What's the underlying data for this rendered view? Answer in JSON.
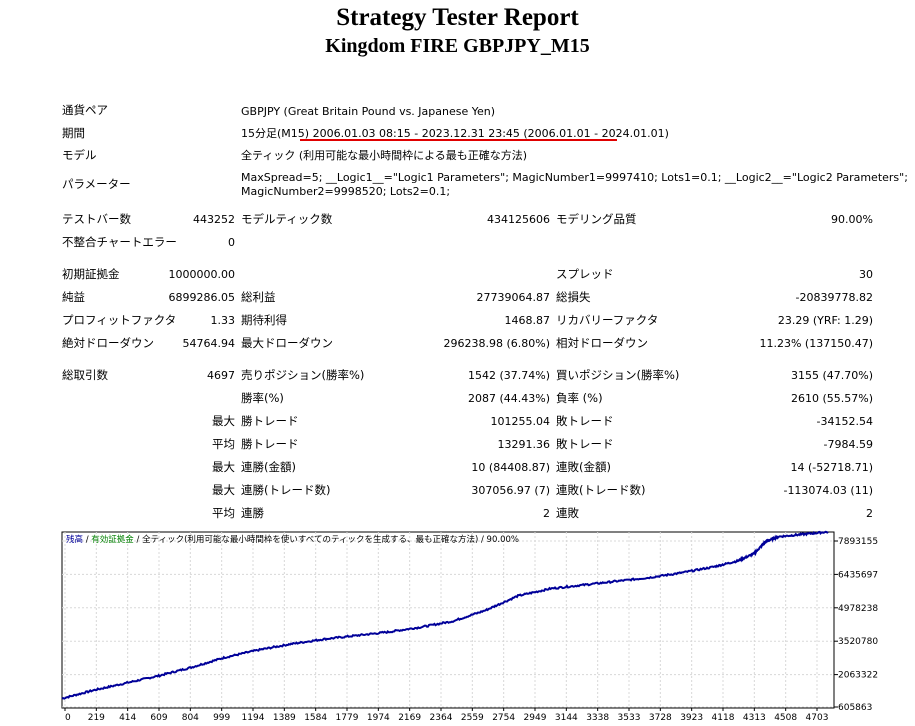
{
  "report": {
    "title": "Strategy Tester Report",
    "subtitle": "Kingdom FIRE GBPJPY_M15"
  },
  "info": {
    "pair_label": "通貨ペア",
    "pair_value": "GBPJPY (Great Britain Pound vs. Japanese Yen)",
    "period_label": "期間",
    "period_prefix": "15分足(M15)",
    "period_range": "2006.01.03 08:15 - 2023.12.31 23:45 (2006.01.01 - 2024.01.01)",
    "model_label": "モデル",
    "model_value": "全ティック (利用可能な最小時間枠による最も正確な方法)",
    "params_label": "パラメーター",
    "params_line1": "MaxSpread=5; __Logic1__=\"Logic1 Parameters\"; MagicNumber1=9997410; Lots1=0.1; __Logic2__=\"Logic2 Parameters\";",
    "params_line2": "MagicNumber2=9998520; Lots2=0.1;"
  },
  "stats": {
    "bars_label": "テストバー数",
    "bars_value": "443252",
    "model_ticks_label": "モデルティック数",
    "model_ticks_value": "434125606",
    "model_quality_label": "モデリング品質",
    "model_quality_value": "90.00%",
    "mismatch_label": "不整合チャートエラー",
    "mismatch_value": "0",
    "deposit_label": "初期証拠金",
    "deposit_value": "1000000.00",
    "spread_label": "スプレッド",
    "spread_value": "30",
    "net_label": "純益",
    "net_value": "6899286.05",
    "gross_profit_label": "総利益",
    "gross_profit_value": "27739064.87",
    "gross_loss_label": "総損失",
    "gross_loss_value": "-20839778.82",
    "pf_label": "プロフィットファクタ",
    "pf_value": "1.33",
    "expected_label": "期待利得",
    "expected_value": "1468.87",
    "recovery_label": "リカバリーファクタ",
    "recovery_value": "23.29 (YRF: 1.29)",
    "abs_dd_label": "絶対ドローダウン",
    "abs_dd_value": "54764.94",
    "max_dd_label": "最大ドローダウン",
    "max_dd_value": "296238.98 (6.80%)",
    "rel_dd_label": "相対ドローダウン",
    "rel_dd_value": "11.23% (137150.47)",
    "trades_label": "総取引数",
    "trades_value": "4697",
    "short_label": "売りポジション(勝率%)",
    "short_value": "1542 (37.74%)",
    "long_label": "買いポジション(勝率%)",
    "long_value": "3155 (47.70%)",
    "win_pct_label": "勝率(%)",
    "win_pct_value": "2087 (44.43%)",
    "loss_pct_label": "負率 (%)",
    "loss_pct_value": "2610 (55.57%)",
    "max_prefix": "最大",
    "avg_prefix": "平均",
    "largest_win_label": "勝トレード",
    "largest_win_value": "101255.04",
    "largest_loss_label": "敗トレード",
    "largest_loss_value": "-34152.54",
    "avg_win_label": "勝トレード",
    "avg_win_value": "13291.36",
    "avg_loss_label": "敗トレード",
    "avg_loss_value": "-7984.59",
    "consec_wins_money_label": "連勝(金額)",
    "consec_wins_money_value": "10 (84408.87)",
    "consec_losses_money_label": "連敗(金額)",
    "consec_losses_money_value": "14 (-52718.71)",
    "consec_profit_label": "連勝(トレード数)",
    "consec_profit_value": "307056.97 (7)",
    "consec_loss_label": "連敗(トレード数)",
    "consec_loss_value": "-113074.03 (11)",
    "avg_consec_wins_label": "連勝",
    "avg_consec_wins_value": "2",
    "avg_consec_losses_label": "連敗",
    "avg_consec_losses_value": "2"
  },
  "chart_data": {
    "type": "line",
    "legend": {
      "balance": "残高",
      "sep1": " / ",
      "equity": "有効証拠金",
      "sep2": " / ",
      "desc": "全ティック(利用可能な最小時間枠を使いすべてのティックを生成する、最も正確な方法)",
      "quality": " / 90.00%"
    },
    "y_ticks": [
      "7893155",
      "6435697",
      "4978238",
      "3520780",
      "2063322",
      "605863"
    ],
    "x_ticks": [
      "0",
      "219",
      "414",
      "609",
      "804",
      "999",
      "1194",
      "1389",
      "1584",
      "1779",
      "1974",
      "2169",
      "2364",
      "2559",
      "2754",
      "2949",
      "3144",
      "3338",
      "3533",
      "3728",
      "3923",
      "4118",
      "4313",
      "4508",
      "4703"
    ],
    "ylim": [
      605863,
      7893155
    ],
    "xlim": [
      0,
      4703
    ],
    "series": [
      {
        "values": [
          [
            0,
            1000000
          ],
          [
            200,
            1350000
          ],
          [
            400,
            1650000
          ],
          [
            600,
            1950000
          ],
          [
            800,
            2300000
          ],
          [
            1000,
            2700000
          ],
          [
            1200,
            3000000
          ],
          [
            1400,
            3250000
          ],
          [
            1600,
            3450000
          ],
          [
            1800,
            3600000
          ],
          [
            2000,
            3750000
          ],
          [
            2200,
            3950000
          ],
          [
            2400,
            4200000
          ],
          [
            2600,
            4650000
          ],
          [
            2800,
            5250000
          ],
          [
            3000,
            5550000
          ],
          [
            3200,
            5700000
          ],
          [
            3400,
            5850000
          ],
          [
            3600,
            6000000
          ],
          [
            3800,
            6200000
          ],
          [
            4000,
            6450000
          ],
          [
            4150,
            6700000
          ],
          [
            4250,
            7000000
          ],
          [
            4320,
            7500000
          ],
          [
            4400,
            7700000
          ],
          [
            4550,
            7800000
          ],
          [
            4703,
            7899286
          ]
        ]
      }
    ],
    "colors": {
      "balance": "#000099",
      "equity": "#008000",
      "grid": "#d8d8d8",
      "axis": "#000000"
    }
  }
}
